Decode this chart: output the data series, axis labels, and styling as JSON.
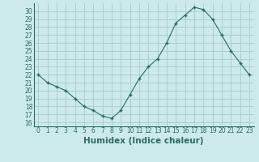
{
  "x": [
    0,
    1,
    2,
    3,
    4,
    5,
    6,
    7,
    8,
    9,
    10,
    11,
    12,
    13,
    14,
    15,
    16,
    17,
    18,
    19,
    20,
    21,
    22,
    23
  ],
  "y": [
    22,
    21,
    20.5,
    20,
    19,
    18,
    17.5,
    16.8,
    16.5,
    17.5,
    19.5,
    21.5,
    23,
    24,
    26,
    28.5,
    29.5,
    30.5,
    30.2,
    29,
    27,
    25,
    23.5,
    22
  ],
  "line_color": "#2d6b5e",
  "marker": "+",
  "bg_color": "#cceaea",
  "grid_color": "#aacece",
  "xlabel": "Humidex (Indice chaleur)",
  "ylim": [
    15.5,
    31
  ],
  "xlim": [
    -0.5,
    23.5
  ],
  "yticks": [
    16,
    17,
    18,
    19,
    20,
    21,
    22,
    23,
    24,
    25,
    26,
    27,
    28,
    29,
    30
  ],
  "xticks": [
    0,
    1,
    2,
    3,
    4,
    5,
    6,
    7,
    8,
    9,
    10,
    11,
    12,
    13,
    14,
    15,
    16,
    17,
    18,
    19,
    20,
    21,
    22,
    23
  ],
  "tick_label_fontsize": 5.5,
  "xlabel_fontsize": 7.5
}
